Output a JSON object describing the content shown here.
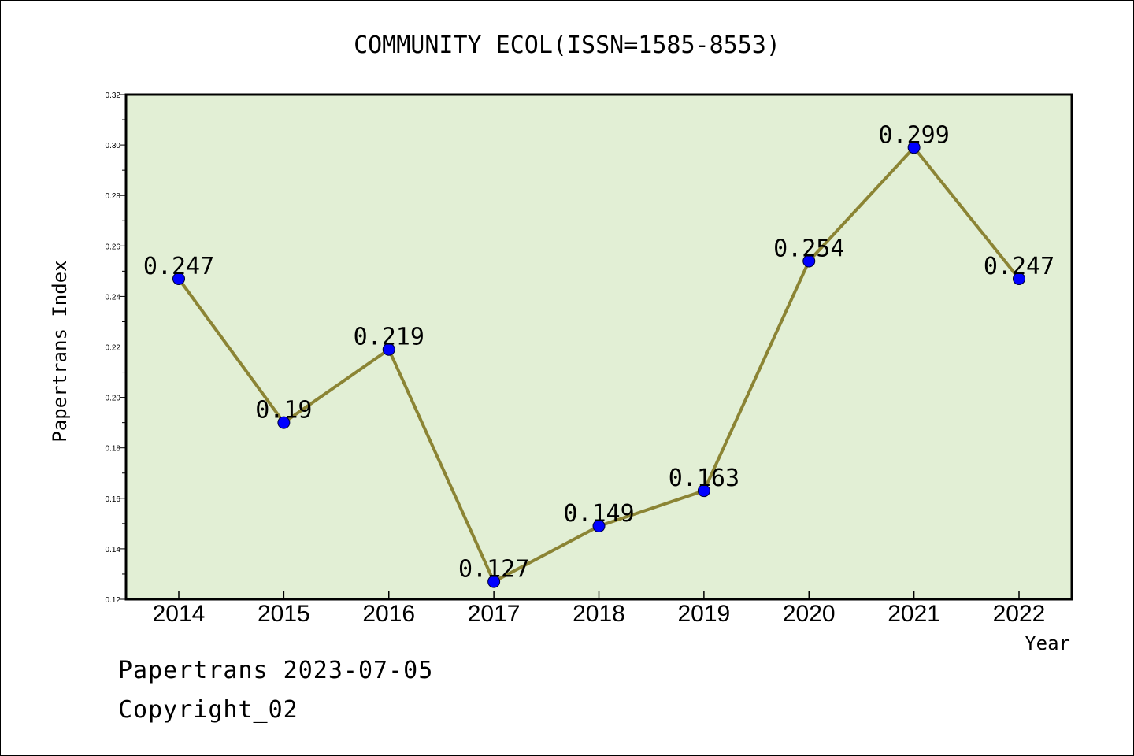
{
  "chart_data": {
    "type": "line",
    "title": "COMMUNITY ECOL(ISSN=1585-8553)",
    "xlabel": "Year",
    "ylabel": "Papertrans Index",
    "categories": [
      "2014",
      "2015",
      "2016",
      "2017",
      "2018",
      "2019",
      "2020",
      "2021",
      "2022"
    ],
    "values": [
      0.247,
      0.19,
      0.219,
      0.127,
      0.149,
      0.163,
      0.254,
      0.299,
      0.247
    ],
    "data_labels": [
      "0.247",
      "0.19",
      "0.219",
      "0.127",
      "0.149",
      "0.163",
      "0.254",
      "0.299",
      "0.247"
    ],
    "ylim": [
      0.12,
      0.32
    ],
    "yticks": [
      0.12,
      0.14,
      0.16,
      0.18,
      0.2,
      0.22,
      0.24,
      0.26,
      0.28,
      0.3,
      0.32
    ],
    "ytick_labels": [
      "0.12",
      "0.14",
      "0.16",
      "0.18",
      "0.20",
      "0.22",
      "0.24",
      "0.26",
      "0.28",
      "0.30",
      "0.32"
    ],
    "grid": false,
    "legend": "none",
    "colors": {
      "plot_background": "#e2efd5",
      "line": "#8b8434",
      "marker": "#0000ff"
    }
  },
  "footer": {
    "date_text": "Papertrans 2023-07-05",
    "copyright_text": "Copyright_02"
  }
}
